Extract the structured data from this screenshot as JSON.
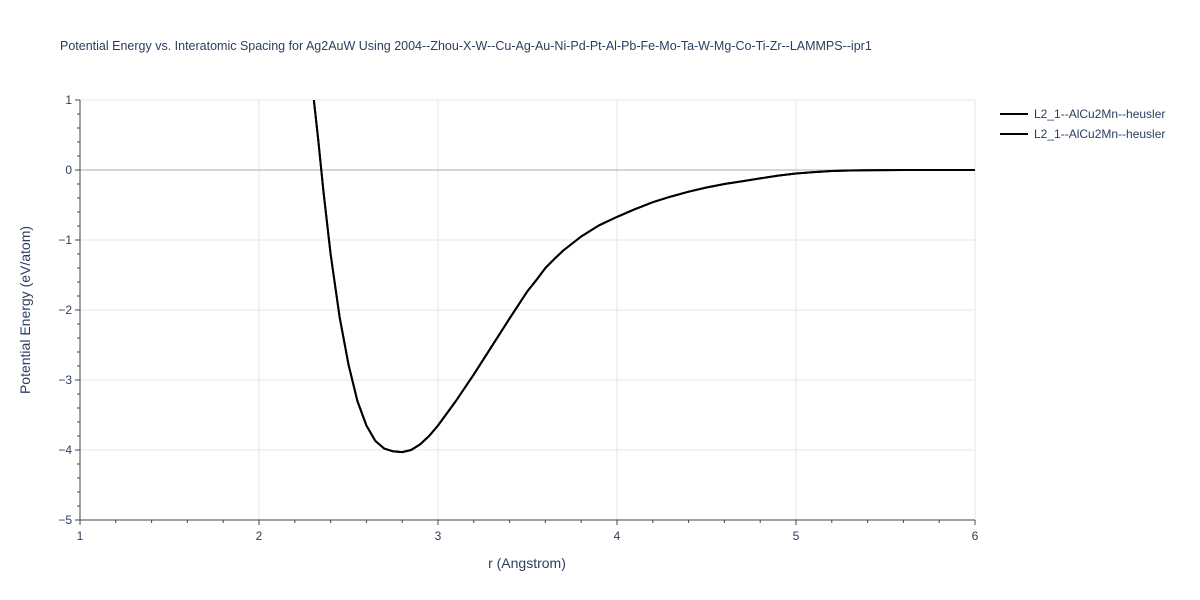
{
  "chart_data": {
    "type": "line",
    "title": "Potential Energy vs. Interatomic Spacing for Ag2AuW Using 2004--Zhou-X-W--Cu-Ag-Au-Ni-Pd-Pt-Al-Pb-Fe-Mo-Ta-W-Mg-Co-Ti-Zr--LAMMPS--ipr1",
    "xlabel": "r (Angstrom)",
    "ylabel": "Potential Energy (eV/atom)",
    "xlim": [
      1,
      6
    ],
    "ylim": [
      -5,
      1
    ],
    "xticks": [
      1,
      2,
      3,
      4,
      5,
      6
    ],
    "yticks": [
      -5,
      -4,
      -3,
      -2,
      -1,
      0,
      1
    ],
    "xtick_labels": [
      "1",
      "2",
      "3",
      "4",
      "5",
      "6"
    ],
    "ytick_labels": [
      "−5",
      "−4",
      "−3",
      "−2",
      "−1",
      "0",
      "1"
    ],
    "grid": true,
    "legend_position": "top-right",
    "series": [
      {
        "name": "L2_1--AlCu2Mn--heusler",
        "color": "#000000",
        "x": [
          2.3,
          2.33,
          2.36,
          2.4,
          2.45,
          2.5,
          2.55,
          2.6,
          2.65,
          2.7,
          2.75,
          2.8,
          2.85,
          2.9,
          2.95,
          3.0,
          3.1,
          3.2,
          3.3,
          3.4,
          3.5,
          3.55,
          3.6,
          3.65,
          3.7,
          3.8,
          3.9,
          4.0,
          4.1,
          4.2,
          4.3,
          4.4,
          4.5,
          4.6,
          4.7,
          4.8,
          4.9,
          5.0,
          5.1,
          5.2,
          5.3,
          5.4,
          5.5,
          5.6,
          5.8,
          6.0
        ],
        "y": [
          1.15,
          0.45,
          -0.3,
          -1.2,
          -2.1,
          -2.78,
          -3.3,
          -3.65,
          -3.87,
          -3.98,
          -4.02,
          -4.03,
          -4.0,
          -3.92,
          -3.8,
          -3.65,
          -3.3,
          -2.92,
          -2.52,
          -2.12,
          -1.73,
          -1.57,
          -1.4,
          -1.27,
          -1.15,
          -0.95,
          -0.79,
          -0.67,
          -0.56,
          -0.46,
          -0.38,
          -0.31,
          -0.25,
          -0.2,
          -0.16,
          -0.12,
          -0.08,
          -0.05,
          -0.03,
          -0.015,
          -0.007,
          -0.003,
          -0.001,
          0.0,
          0.0,
          0.0
        ]
      },
      {
        "name": "L2_1--AlCu2Mn--heusler",
        "color": "#000000",
        "x": [
          2.3,
          2.33,
          2.36,
          2.4,
          2.45,
          2.5,
          2.55,
          2.6,
          2.65,
          2.7,
          2.75,
          2.8,
          2.85,
          2.9,
          2.95,
          3.0,
          3.1,
          3.2,
          3.3,
          3.4,
          3.5,
          3.55,
          3.6,
          3.65,
          3.7,
          3.8,
          3.9,
          4.0,
          4.1,
          4.2,
          4.3,
          4.4,
          4.5,
          4.6,
          4.7,
          4.8,
          4.9,
          5.0,
          5.1,
          5.2,
          5.3,
          5.4,
          5.5,
          5.6,
          5.8,
          6.0
        ],
        "y": [
          1.15,
          0.45,
          -0.3,
          -1.2,
          -2.1,
          -2.78,
          -3.3,
          -3.65,
          -3.87,
          -3.98,
          -4.02,
          -4.03,
          -4.0,
          -3.92,
          -3.8,
          -3.65,
          -3.3,
          -2.92,
          -2.52,
          -2.12,
          -1.73,
          -1.57,
          -1.4,
          -1.27,
          -1.15,
          -0.95,
          -0.79,
          -0.67,
          -0.56,
          -0.46,
          -0.38,
          -0.31,
          -0.25,
          -0.2,
          -0.16,
          -0.12,
          -0.08,
          -0.05,
          -0.03,
          -0.015,
          -0.007,
          -0.003,
          -0.001,
          0.0,
          0.0,
          0.0
        ]
      }
    ]
  }
}
